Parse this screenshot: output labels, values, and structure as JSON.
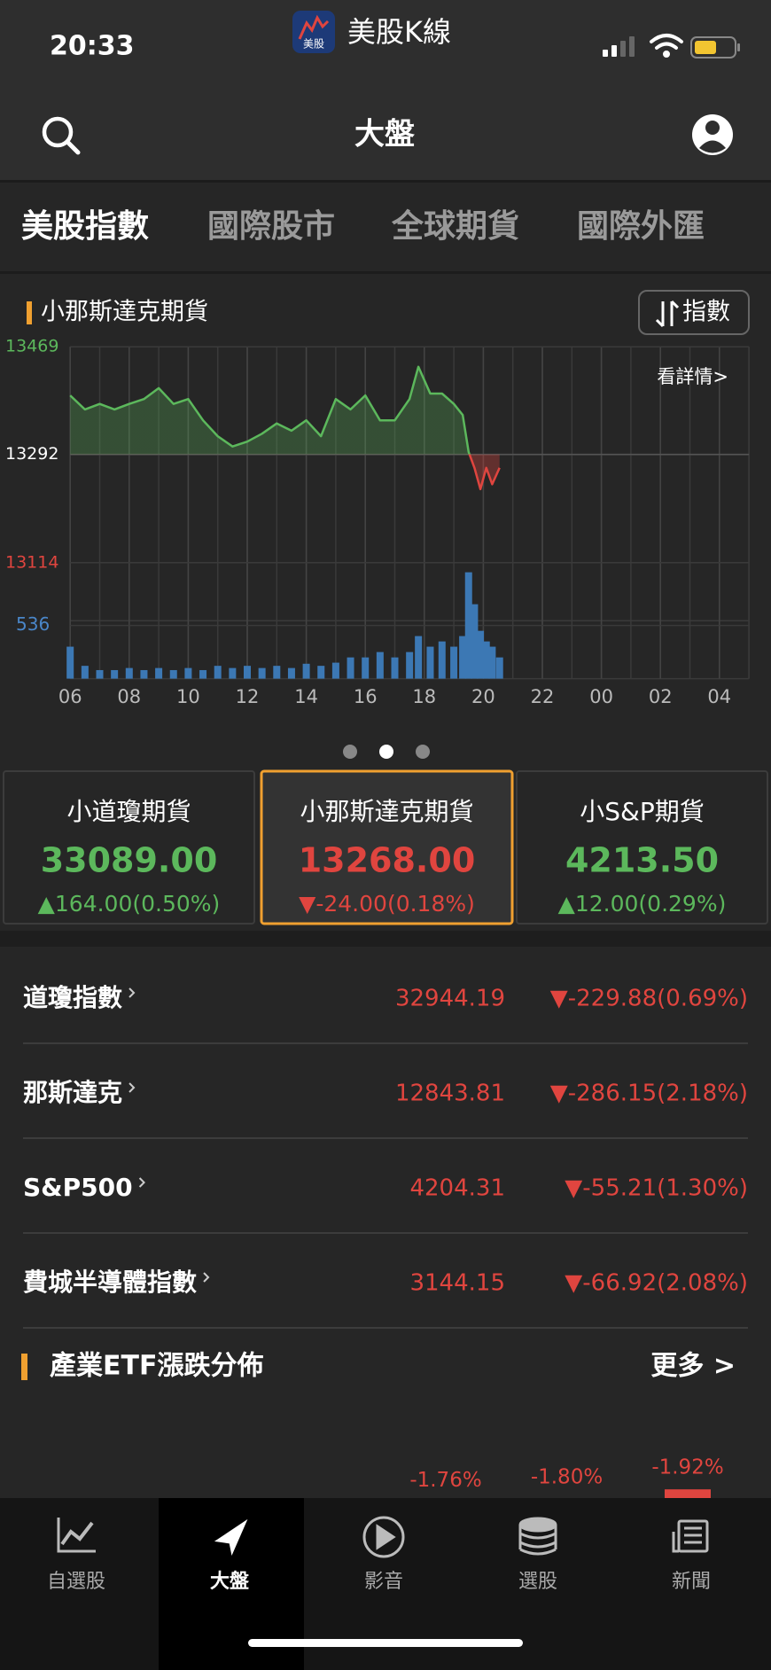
{
  "status_bar": {
    "time": "20:33",
    "app_name": "美股K線",
    "app_icon_text": "美股"
  },
  "header": {
    "title": "大盤"
  },
  "tabs": [
    "美股指數",
    "國際股市",
    "全球期貨",
    "國際外匯"
  ],
  "active_tab": 0,
  "colors": {
    "up": "#5cb85c",
    "down": "#e0453f",
    "flat": "#ffffff"
  },
  "chart_data": [
    {
      "type": "line",
      "title": "小那斯達克期貨",
      "button": "指數",
      "link": "看詳情>",
      "previous_close": 13292,
      "x": [
        6,
        6.5,
        7,
        7.5,
        8,
        8.5,
        9,
        9.5,
        10,
        10.5,
        11,
        11.5,
        12,
        12.5,
        13,
        13.5,
        14,
        14.5,
        15,
        15.5,
        16,
        16.5,
        17,
        17.5,
        17.8,
        18.2,
        18.6,
        19,
        19.3,
        19.5,
        19.7,
        19.9,
        20.1,
        20.3,
        20.55
      ],
      "series": [
        {
          "values": [
            13389,
            13366,
            13375,
            13366,
            13375,
            13383,
            13401,
            13375,
            13383,
            13348,
            13322,
            13305,
            13313,
            13326,
            13343,
            13331,
            13348,
            13322,
            13383,
            13366,
            13389,
            13348,
            13348,
            13383,
            13436,
            13392,
            13392,
            13375,
            13357,
            13296,
            13270,
            13235,
            13270,
            13243,
            13270
          ]
        },
        {
          "color": "#3c78b4",
          "axis": "y2",
          "values": [
            322,
            129,
            86,
            86,
            107,
            86,
            107,
            86,
            107,
            86,
            129,
            107,
            129,
            107,
            129,
            107,
            150,
            129,
            161,
            214,
            214,
            268,
            214,
            268,
            429,
            322,
            375,
            322,
            429,
            1072,
            750,
            482,
            375,
            322,
            214
          ]
        }
      ],
      "xlim": [
        6,
        29
      ],
      "xticks": [
        {
          "value": 6,
          "label": "06"
        },
        {
          "value": 8,
          "label": "08"
        },
        10,
        12,
        14,
        16,
        18,
        20,
        22,
        {
          "value": 24,
          "label": "00"
        },
        {
          "value": 26,
          "label": "02"
        },
        {
          "value": 28,
          "label": "04"
        }
      ],
      "ylim": [
        13114,
        13469
      ],
      "yticks": [
        13469,
        13292,
        13114
      ],
      "y2lim": [
        0,
        536
      ],
      "y2ticks": [
        536
      ],
      "grid": true
    },
    {
      "type": "bar",
      "title": "產業ETF漲跌分佈",
      "link": "更多 >",
      "values": [
        -1.76,
        -1.8,
        -1.92
      ],
      "value_labels": [
        "-1.76%",
        "-1.80%",
        "-1.92%"
      ],
      "color": "#e0453f"
    }
  ],
  "pager": {
    "count": 3,
    "active": 1
  },
  "cards": [
    {
      "name": "小道瓊期貨",
      "price": "33089.00",
      "change": "▲164.00(0.50%)",
      "direction": "up"
    },
    {
      "name": "小那斯達克期貨",
      "price": "13268.00",
      "change": "▼-24.00(0.18%)",
      "direction": "down"
    },
    {
      "name": "小S&P期貨",
      "price": "4213.50",
      "change": "▲12.00(0.29%)",
      "direction": "up"
    }
  ],
  "selected_card": 1,
  "indices": [
    {
      "name": "道瓊指數",
      "value": "32944.19",
      "change": "▼-229.88(0.69%)",
      "direction": "down"
    },
    {
      "name": "那斯達克",
      "value": "12843.81",
      "change": "▼-286.15(2.18%)",
      "direction": "down"
    },
    {
      "name": "S&P500",
      "value": "4204.31",
      "change": "▼-55.21(1.30%)",
      "direction": "down"
    },
    {
      "name": "費城半導體指數",
      "value": "3144.15",
      "change": "▼-66.92(2.08%)",
      "direction": "down"
    }
  ],
  "nav": [
    "自選股",
    "大盤",
    "影音",
    "選股",
    "新聞"
  ],
  "active_nav": 1
}
